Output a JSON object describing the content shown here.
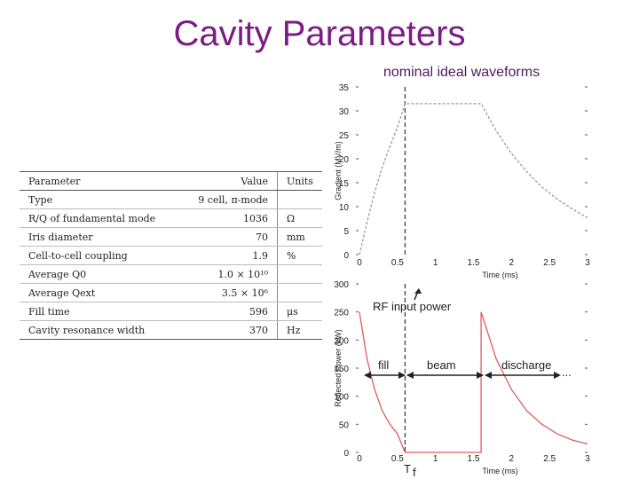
{
  "slide": {
    "title": "Cavity Parameters",
    "subtitle": "nominal ideal waveforms"
  },
  "table": {
    "headers": [
      "Parameter",
      "Value",
      "Units"
    ],
    "rows": [
      [
        "Type",
        "9 cell, π-mode",
        ""
      ],
      [
        "R/Q of fundamental mode",
        "1036",
        "Ω"
      ],
      [
        "Iris diameter",
        "70",
        "mm"
      ],
      [
        "Cell-to-cell coupling",
        "1.9",
        "%"
      ],
      [
        "Average Q0",
        "1.0 × 10¹⁰",
        ""
      ],
      [
        "Average Qext",
        "3.5 × 10⁶",
        ""
      ],
      [
        "Fill time",
        "596",
        "μs"
      ],
      [
        "Cavity resonance width",
        "370",
        "Hz"
      ]
    ]
  },
  "chart_data": [
    {
      "type": "line",
      "xlabel": "Time (ms)",
      "ylabel": "Gradient (MV/m)",
      "xlim": [
        0,
        3
      ],
      "ylim": [
        0,
        35
      ],
      "xticks": [
        "0",
        "0.5",
        "1",
        "1.5",
        "2",
        "2.5",
        "3"
      ],
      "yticks": [
        "0",
        "5",
        "10",
        "15",
        "20",
        "25",
        "30",
        "35"
      ],
      "series": [
        {
          "x": [
            0,
            0.1,
            0.2,
            0.3,
            0.4,
            0.5,
            0.6,
            1.6,
            1.8,
            2.0,
            2.2,
            2.4,
            2.6,
            2.8,
            3.0
          ],
          "y": [
            0,
            6.8,
            13.0,
            18.2,
            22.6,
            26.6,
            31.5,
            31.5,
            25.8,
            21.1,
            17.3,
            14.1,
            11.6,
            9.5,
            7.7
          ]
        }
      ]
    },
    {
      "type": "line",
      "xlabel": "Time (ms)",
      "ylabel": "Reflected Power (kW)",
      "xlim": [
        0,
        3
      ],
      "ylim": [
        0,
        300
      ],
      "xticks": [
        "0",
        "0.5",
        "1",
        "1.5",
        "2",
        "2.5",
        "3"
      ],
      "yticks": [
        "0",
        "50",
        "100",
        "150",
        "200",
        "250",
        "300"
      ],
      "series": [
        {
          "x": [
            0,
            0.1,
            0.2,
            0.3,
            0.4,
            0.5,
            0.6,
            1.6,
            1.6,
            1.8,
            2.0,
            2.2,
            2.4,
            2.6,
            2.8,
            3.0
          ],
          "y": [
            250,
            166,
            112,
            74,
            50,
            33,
            0,
            0,
            250,
            166,
            112,
            74,
            50,
            33,
            22,
            15
          ]
        }
      ]
    }
  ],
  "annotations": {
    "rf_input_power": "RF input power",
    "fill": "fill",
    "beam": "beam",
    "discharge": "discharge",
    "ellipsis": "...",
    "t_label": "T",
    "t_sub": "f"
  }
}
